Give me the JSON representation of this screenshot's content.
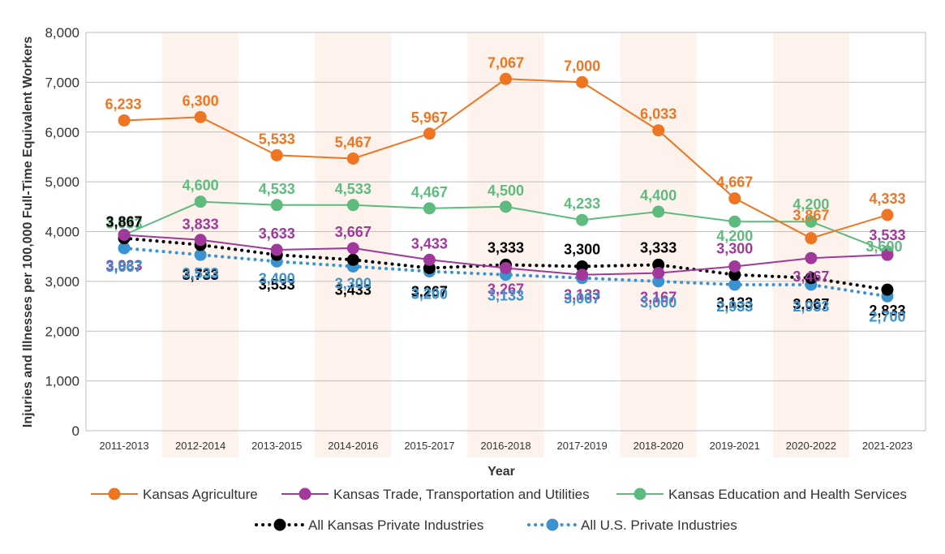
{
  "chart_data": {
    "type": "line",
    "title": "",
    "xlabel": "Year",
    "ylabel": "Injuries and Illnesses per 100,000 Full-Time Equivalent Workers",
    "ylim": [
      0,
      8000
    ],
    "yticks": [
      "0",
      "1,000",
      "2,000",
      "3,000",
      "4,000",
      "5,000",
      "6,000",
      "7,000",
      "8,000"
    ],
    "categories": [
      "2011-2013",
      "2012-2014",
      "2013-2015",
      "2014-2016",
      "2015-2017",
      "2016-2018",
      "2017-2019",
      "2018-2020",
      "2019-2021",
      "2020-2022",
      "2021-2023"
    ],
    "grid": true,
    "legend_position": "bottom",
    "series": [
      {
        "name": "Kansas Agriculture",
        "color": "#EE7623",
        "style": "solid",
        "values": [
          6233,
          6300,
          5533,
          5467,
          5967,
          7067,
          7000,
          6033,
          4667,
          3867,
          4333
        ],
        "labels": [
          "6,233",
          "6,300",
          "5,533",
          "5,467",
          "5,967",
          "7,067",
          "7,000",
          "6,033",
          "4,667",
          "3,867",
          "4,333"
        ]
      },
      {
        "name": "Kansas Trade, Transportation and Utilities",
        "color": "#A0399B",
        "style": "solid",
        "values": [
          3933,
          3833,
          3633,
          3667,
          3433,
          3267,
          3133,
          3167,
          3300,
          3467,
          3533
        ],
        "labels": [
          "3,933",
          "3,833",
          "3,633",
          "3,667",
          "3,433",
          "3,267",
          "3,133",
          "3,167",
          "3,300",
          "3,467",
          "3,533"
        ]
      },
      {
        "name": "Kansas Education and Health Services",
        "color": "#5DBB7E",
        "style": "solid",
        "values": [
          3933,
          4600,
          4533,
          4533,
          4467,
          4500,
          4233,
          4400,
          4200,
          4200,
          3600
        ],
        "labels": [
          "3,933",
          "4,600",
          "4,533",
          "4,533",
          "4,467",
          "4,500",
          "4,233",
          "4,400",
          "4,200",
          "4,200",
          "3,600"
        ]
      },
      {
        "name": "All Kansas Private Industries",
        "color": "#000000",
        "style": "dotted",
        "values": [
          3867,
          3733,
          3533,
          3433,
          3267,
          3333,
          3300,
          3333,
          3133,
          3067,
          2833
        ],
        "labels": [
          "3,867",
          "3,733",
          "3,533",
          "3,433",
          "3,267",
          "3,333",
          "3,300",
          "3,333",
          "3,133",
          "3,067",
          "2,833"
        ]
      },
      {
        "name": "All U.S. Private Industries",
        "color": "#3A93D0",
        "style": "dotted",
        "values": [
          3667,
          3533,
          3400,
          3300,
          3200,
          3133,
          3067,
          3000,
          2933,
          2933,
          2700
        ],
        "labels": [
          "3,667",
          "3,533",
          "3,400",
          "3,300",
          "3,200",
          "3,133",
          "3,067",
          "3,000",
          "2,933",
          "2,933",
          "2,700"
        ]
      }
    ]
  }
}
